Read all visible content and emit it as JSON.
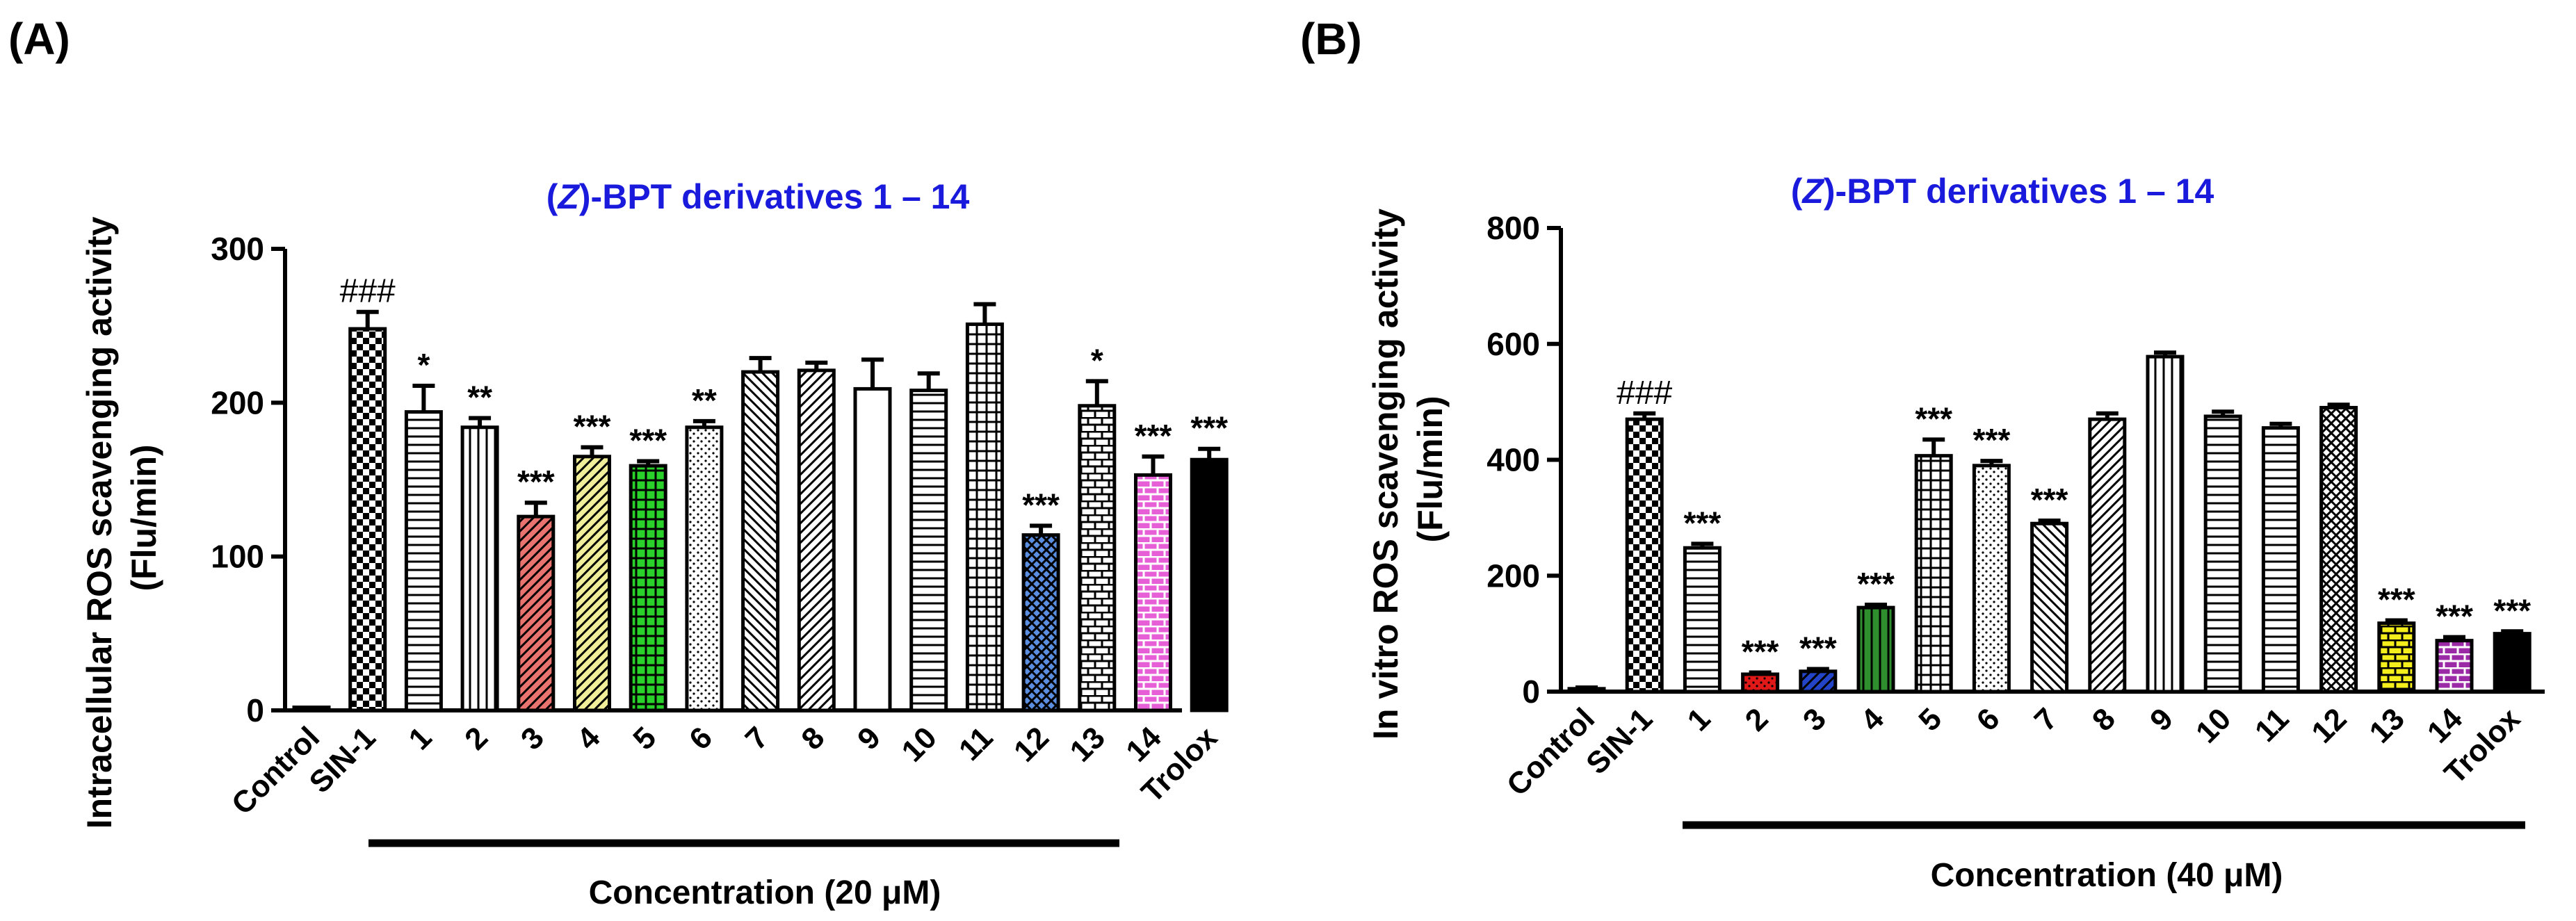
{
  "colors": {
    "subtitle": "#1a1adc",
    "axis": "#000000",
    "bar_outline": "#000000",
    "fill_black": "#000000",
    "fill_red": "#e8736f",
    "fill_yellow": "#f1ee9a",
    "fill_green": "#2bd12b",
    "fill_blue": "#5b8ee0",
    "fill_magenta": "#e65fd6",
    "fill_red_b": "#e01818",
    "fill_blue_b": "#2444c8",
    "fill_green_b": "#2f8f2f",
    "fill_yellow_b": "#f4ef1c",
    "fill_purple_b": "#9b2aa6"
  },
  "chart_data": [
    {
      "type": "bar",
      "panel_label": "(A)",
      "title_prefix": "(",
      "title_italic": "Z",
      "title_suffix": ")-BPT derivatives 1 – 14",
      "ylabel_line1": "Intracellular ROS scavenging activity",
      "ylabel_line2": "(Flu/min)",
      "xlabel": "Concentration (20 μM)",
      "ylim": [
        0,
        300
      ],
      "yticks": [
        "0",
        "100",
        "200",
        "300"
      ],
      "categories": [
        "Control",
        "SIN-1",
        "1",
        "2",
        "3",
        "4",
        "5",
        "6",
        "7",
        "8",
        "9",
        "10",
        "11",
        "12",
        "13",
        "14",
        "Trolox"
      ],
      "values": [
        2,
        248,
        194,
        184,
        126,
        165,
        159,
        184,
        220,
        221,
        209,
        208,
        251,
        114,
        198,
        153,
        163
      ],
      "errors": [
        0,
        11,
        17,
        6,
        9,
        6,
        3,
        4,
        9,
        5,
        19,
        11,
        13,
        6,
        16,
        12,
        7
      ],
      "significance": [
        "",
        "###",
        "*",
        "**",
        "***",
        "***",
        "***",
        "**",
        "",
        "",
        "",
        "",
        "",
        "***",
        "*",
        "***",
        "***"
      ],
      "patterns": [
        "plain",
        "check",
        "hlines",
        "vlines",
        "diag_red",
        "diag_yellow",
        "grid_green",
        "dots",
        "diag_left",
        "diag_right",
        "plain",
        "hlines",
        "grid",
        "cross_blue",
        "brick",
        "brick_magenta",
        "solid_black"
      ]
    },
    {
      "type": "bar",
      "panel_label": "(B)",
      "title_prefix": "(",
      "title_italic": "Z",
      "title_suffix": ")-BPT derivatives 1 – 14",
      "ylabel_line1": "In vitro ROS scavenging activity",
      "ylabel_line2": "(Flu/min)",
      "xlabel": "Concentration (40 μM)",
      "ylim": [
        0,
        800
      ],
      "yticks": [
        "0",
        "200",
        "400",
        "600",
        "800"
      ],
      "categories": [
        "Control",
        "SIN-1",
        "1",
        "2",
        "3",
        "4",
        "5",
        "6",
        "7",
        "8",
        "9",
        "10",
        "11",
        "12",
        "13",
        "14",
        "Trolox"
      ],
      "values": [
        5,
        470,
        248,
        30,
        35,
        145,
        407,
        390,
        290,
        470,
        578,
        475,
        455,
        490,
        118,
        88,
        100
      ],
      "errors": [
        2,
        10,
        7,
        3,
        4,
        5,
        28,
        8,
        5,
        10,
        7,
        8,
        7,
        5,
        5,
        6,
        4
      ],
      "significance": [
        "",
        "###",
        "***",
        "***",
        "***",
        "***",
        "***",
        "***",
        "***",
        "",
        "",
        "",
        "",
        "",
        "***",
        "***",
        "***"
      ],
      "patterns": [
        "plain",
        "check",
        "hlines",
        "dots_red",
        "diag_blue",
        "vlines_green",
        "grid",
        "dots",
        "diag_left",
        "diag_right",
        "vlines",
        "hlines",
        "hlines",
        "cross",
        "brick_yellow",
        "brick_purple",
        "solid_black"
      ]
    }
  ]
}
